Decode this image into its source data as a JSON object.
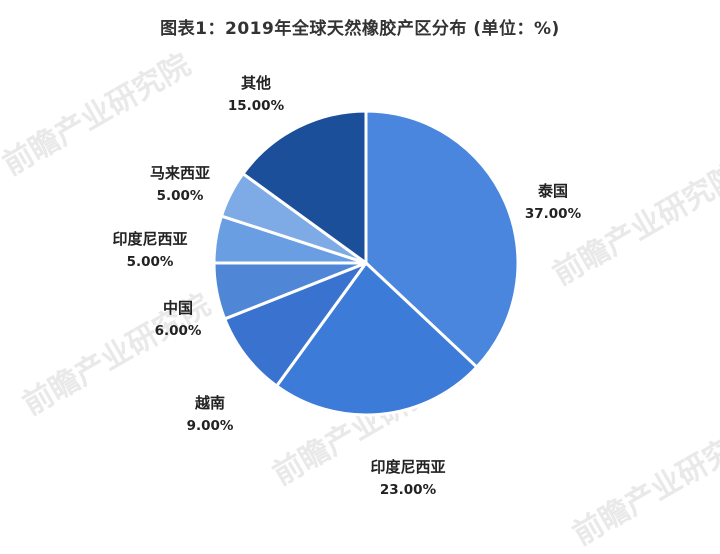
{
  "title": "图表1：2019年全球天然橡胶产区分布 (单位：%)",
  "chart_data": {
    "type": "pie",
    "title": "图表1：2019年全球天然橡胶产区分布 (单位：%)",
    "categories": [
      "泰国",
      "印度尼西亚",
      "越南",
      "中国",
      "印度尼西亚",
      "马来西亚",
      "其他"
    ],
    "values": [
      37,
      23,
      9,
      6,
      5,
      5,
      15
    ],
    "value_labels": [
      "37.00%",
      "23.00%",
      "9.00%",
      "6.00%",
      "5.00%",
      "5.00%",
      "15.00%"
    ],
    "colors": [
      "#4a86dd",
      "#3d7bd8",
      "#3a73cf",
      "#4f86d5",
      "#6a9ee2",
      "#7eabe6",
      "#1c4f9a"
    ],
    "unit": "%",
    "legend": "none"
  },
  "watermark": "前瞻产业研究院"
}
